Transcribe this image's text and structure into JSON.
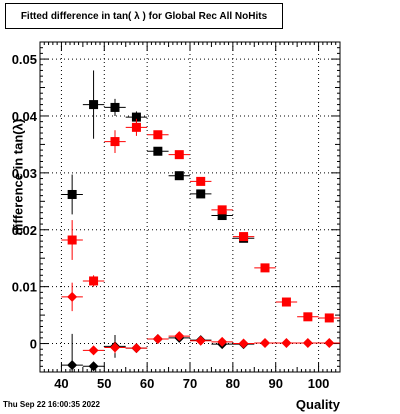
{
  "title": "Fitted difference in tan( λ ) for Global Rec All NoHits",
  "footer_date": "Thu Sep 22 16:00:35 2022",
  "chart_data": {
    "type": "scatter",
    "title": "Fitted difference in tan( λ ) for Global Rec All NoHits",
    "xlabel": "Quality",
    "ylabel": "difference in tan(λ)",
    "xlim": [
      35,
      105
    ],
    "ylim": [
      -0.005,
      0.053
    ],
    "xticks": [
      40,
      50,
      60,
      70,
      80,
      90,
      100
    ],
    "yticks": [
      0,
      0.01,
      0.02,
      0.03,
      0.04,
      0.05
    ],
    "ytick_labels": [
      "0",
      "0.01",
      "0.02",
      "0.03",
      "0.04",
      "0.05"
    ],
    "grid": true,
    "series": [
      {
        "marker": "square",
        "color": "#000000",
        "points": [
          {
            "x": 42.5,
            "y": 0.0262,
            "ex": 2.5,
            "ey": 0.0035
          },
          {
            "x": 47.5,
            "y": 0.042,
            "ex": 2.5,
            "ey": 0.006
          },
          {
            "x": 52.5,
            "y": 0.0415,
            "ex": 2.5,
            "ey": 0.0015
          },
          {
            "x": 57.5,
            "y": 0.0398,
            "ex": 2.5,
            "ey": 0.001
          },
          {
            "x": 62.5,
            "y": 0.0338,
            "ex": 2.5,
            "ey": 0.0005
          },
          {
            "x": 67.5,
            "y": 0.0295,
            "ex": 2.5,
            "ey": 0.0003
          },
          {
            "x": 72.5,
            "y": 0.0263,
            "ex": 2.5,
            "ey": 0.0003
          },
          {
            "x": 77.5,
            "y": 0.0225,
            "ex": 2.5,
            "ey": 0.0003
          },
          {
            "x": 82.5,
            "y": 0.0185,
            "ex": 2.5,
            "ey": 0.0003
          }
        ]
      },
      {
        "marker": "square",
        "color": "#ff0000",
        "points": [
          {
            "x": 42.5,
            "y": 0.0182,
            "ex": 2.5,
            "ey": 0.0035
          },
          {
            "x": 47.5,
            "y": 0.011,
            "ex": 2.5,
            "ey": 0.001
          },
          {
            "x": 52.5,
            "y": 0.0355,
            "ex": 2.5,
            "ey": 0.002
          },
          {
            "x": 57.5,
            "y": 0.038,
            "ex": 2.5,
            "ey": 0.0015
          },
          {
            "x": 62.5,
            "y": 0.0367,
            "ex": 2.5,
            "ey": 0.0005
          },
          {
            "x": 67.5,
            "y": 0.0332,
            "ex": 2.5,
            "ey": 0.0003
          },
          {
            "x": 72.5,
            "y": 0.0285,
            "ex": 2.5,
            "ey": 0.0003
          },
          {
            "x": 77.5,
            "y": 0.0235,
            "ex": 2.5,
            "ey": 0.0003
          },
          {
            "x": 82.5,
            "y": 0.0188,
            "ex": 2.5,
            "ey": 0.0003
          },
          {
            "x": 87.5,
            "y": 0.0133,
            "ex": 2.5,
            "ey": 0.0003
          },
          {
            "x": 92.5,
            "y": 0.0073,
            "ex": 2.5,
            "ey": 0.0002
          },
          {
            "x": 97.5,
            "y": 0.0047,
            "ex": 2.5,
            "ey": 0.0002
          },
          {
            "x": 102.5,
            "y": 0.0045,
            "ex": 2.5,
            "ey": 0.0002
          }
        ]
      },
      {
        "marker": "diamond",
        "color": "#000000",
        "points": [
          {
            "x": 42.5,
            "y": -0.0038,
            "ex": 2.5,
            "ey": 0.0055
          },
          {
            "x": 47.5,
            "y": -0.004,
            "ex": 2.5,
            "ey": 0.0005
          },
          {
            "x": 52.5,
            "y": -0.0005,
            "ex": 2.5,
            "ey": 0.002
          },
          {
            "x": 57.5,
            "y": -0.0008,
            "ex": 2.5,
            "ey": 0.0005
          },
          {
            "x": 62.5,
            "y": 0.0008,
            "ex": 2.5,
            "ey": 0.0002
          },
          {
            "x": 67.5,
            "y": 0.001,
            "ex": 2.5,
            "ey": 0.0002
          },
          {
            "x": 72.5,
            "y": 0.0006,
            "ex": 2.5,
            "ey": 0.0002
          },
          {
            "x": 77.5,
            "y": -0.0001,
            "ex": 2.5,
            "ey": 0.0002
          },
          {
            "x": 82.5,
            "y": -0.0001,
            "ex": 2.5,
            "ey": 0.0002
          }
        ]
      },
      {
        "marker": "diamond",
        "color": "#ff0000",
        "points": [
          {
            "x": 42.5,
            "y": 0.0082,
            "ex": 2.5,
            "ey": 0.0025
          },
          {
            "x": 47.5,
            "y": -0.0012,
            "ex": 2.5,
            "ey": 0.0005
          },
          {
            "x": 52.5,
            "y": -0.0007,
            "ex": 2.5,
            "ey": 0.001
          },
          {
            "x": 57.5,
            "y": -0.0008,
            "ex": 2.5,
            "ey": 0.0005
          },
          {
            "x": 62.5,
            "y": 0.0008,
            "ex": 2.5,
            "ey": 0.0002
          },
          {
            "x": 67.5,
            "y": 0.0013,
            "ex": 2.5,
            "ey": 0.0002
          },
          {
            "x": 72.5,
            "y": 0.0005,
            "ex": 2.5,
            "ey": 0.0002
          },
          {
            "x": 77.5,
            "y": 0.0003,
            "ex": 2.5,
            "ey": 0.0002
          },
          {
            "x": 82.5,
            "y": 0.0,
            "ex": 2.5,
            "ey": 0.0002
          },
          {
            "x": 87.5,
            "y": 0.0001,
            "ex": 2.5,
            "ey": 0.0002
          },
          {
            "x": 92.5,
            "y": 0.0001,
            "ex": 2.5,
            "ey": 0.0002
          },
          {
            "x": 97.5,
            "y": 0.0001,
            "ex": 2.5,
            "ey": 0.0002
          },
          {
            "x": 102.5,
            "y": 0.0001,
            "ex": 2.5,
            "ey": 0.0002
          }
        ]
      }
    ]
  }
}
